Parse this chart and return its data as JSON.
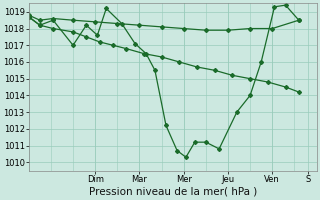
{
  "bg_color": "#cce8e0",
  "grid_color": "#99ccbb",
  "line_color": "#1a6b2a",
  "ylim": [
    1009.5,
    1019.5
  ],
  "yticks": [
    1010,
    1011,
    1012,
    1013,
    1014,
    1015,
    1016,
    1017,
    1018,
    1019
  ],
  "xlabel": "Pression niveau de la mer( hPa )",
  "day_labels": [
    "Dim",
    "Mar",
    "Mer",
    "Jeu",
    "Ven",
    "S"
  ],
  "day_positions": [
    1.5,
    2.5,
    3.5,
    4.5,
    5.5,
    6.3
  ],
  "xlim": [
    0.0,
    6.5
  ],
  "series": [
    {
      "x": [
        0.0,
        0.25,
        0.55,
        1.0,
        1.3,
        1.55,
        1.75,
        2.1,
        2.4,
        2.65,
        2.85,
        3.1,
        3.35,
        3.55,
        3.75,
        4.0,
        4.3,
        4.7,
        5.0,
        5.25,
        5.55,
        5.8,
        6.1
      ],
      "y": [
        1018.7,
        1018.2,
        1018.5,
        1017.0,
        1018.2,
        1017.6,
        1019.2,
        1018.3,
        1017.1,
        1016.5,
        1015.5,
        1012.2,
        1010.7,
        1010.3,
        1011.2,
        1011.2,
        1010.8,
        1013.0,
        1014.0,
        1016.0,
        1019.3,
        1019.4,
        1018.5
      ]
    },
    {
      "x": [
        0.0,
        0.25,
        0.55,
        1.0,
        1.5,
        2.0,
        2.5,
        3.0,
        3.5,
        4.0,
        4.5,
        5.0,
        5.5,
        6.1
      ],
      "y": [
        1018.8,
        1018.5,
        1018.6,
        1018.5,
        1018.4,
        1018.3,
        1018.2,
        1018.1,
        1018.0,
        1017.9,
        1017.9,
        1018.0,
        1018.0,
        1018.5
      ]
    },
    {
      "x": [
        0.0,
        0.25,
        0.55,
        1.0,
        1.3,
        1.6,
        1.9,
        2.2,
        2.6,
        3.0,
        3.4,
        3.8,
        4.2,
        4.6,
        5.0,
        5.4,
        5.8,
        6.1
      ],
      "y": [
        1018.7,
        1018.2,
        1018.0,
        1017.8,
        1017.5,
        1017.2,
        1017.0,
        1016.8,
        1016.5,
        1016.3,
        1016.0,
        1015.7,
        1015.5,
        1015.2,
        1015.0,
        1014.8,
        1014.5,
        1014.2
      ]
    }
  ],
  "tick_fontsize": 6,
  "label_fontsize": 7.5
}
